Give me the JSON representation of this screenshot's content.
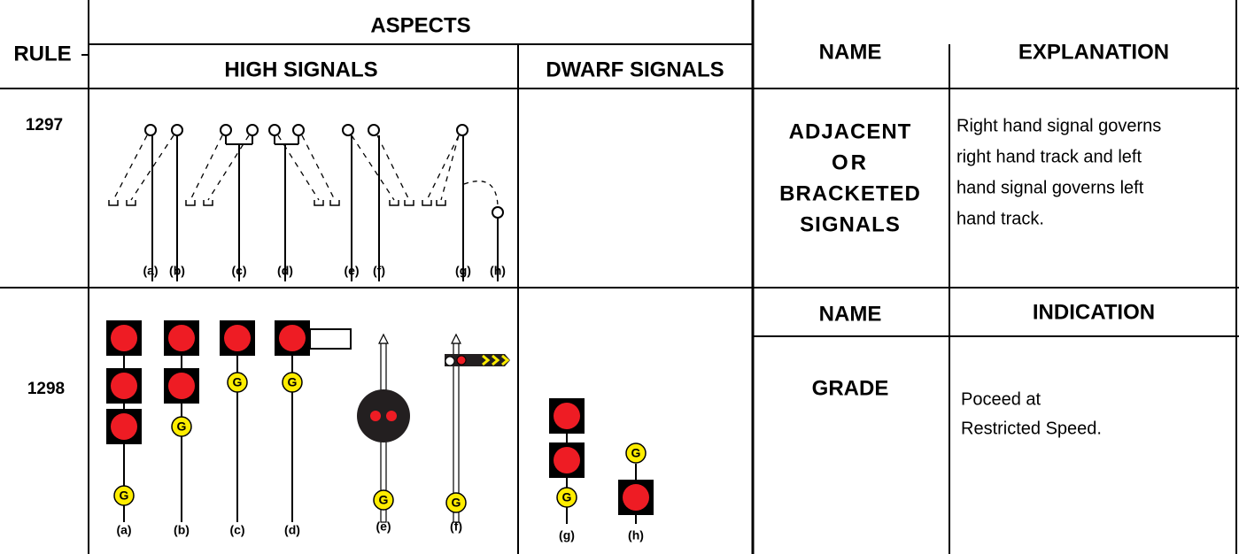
{
  "header": {
    "rule": "RULE",
    "aspects": "ASPECTS",
    "high_signals": "HIGH SIGNALS",
    "dwarf_signals": "DWARF SIGNALS",
    "name": "NAME",
    "explanation": "EXPLANATION"
  },
  "rows": [
    {
      "rule": "1297",
      "high_labels": [
        "(a)",
        "(b)",
        "(c)",
        "(d)",
        "(e)",
        "(f)",
        "(g)",
        "(h)"
      ],
      "name_lines": [
        "ADJACENT",
        "OR",
        "BRACKETED",
        "SIGNALS"
      ],
      "explanation_lines": [
        "Right hand signal governs",
        "right hand track and left",
        "hand signal governs left",
        "hand track."
      ]
    },
    {
      "rule": "1298",
      "high_labels": [
        "(a)",
        "(b)",
        "(c)",
        "(d)",
        "(e)",
        "(f)"
      ],
      "dwarf_labels": [
        "(g)",
        "(h)"
      ],
      "name_header": "NAME",
      "indication_header": "INDICATION",
      "name": "GRADE",
      "indication_lines": [
        "Poceed at",
        "Restricted Speed."
      ]
    }
  ],
  "lamp_letter": "G"
}
